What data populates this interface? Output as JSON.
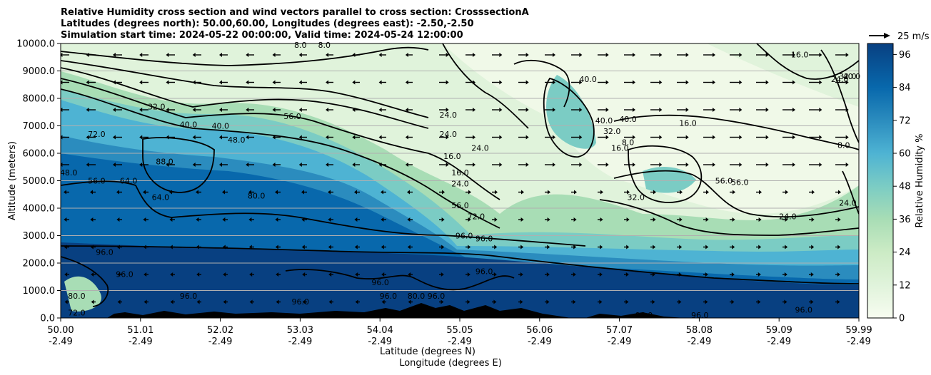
{
  "chart_data": {
    "type": "heatmap",
    "title_lines": [
      "Relative Humidity cross section and wind vectors parallel to cross section: CrosssectionA",
      "Latitudes (degrees north): 50.00,60.00, Longitudes (degrees east): -2.50,-2.50",
      "Simulation start time: 2024-05-22 00:00:00, Valid time: 2024-05-24 12:00:00"
    ],
    "xlabel_lines": [
      "Latitude (degrees N)",
      "Longitude (degrees E)"
    ],
    "ylabel": "Altitude (meters)",
    "colorbar_label": "Relative Humidity %",
    "quiver_key_label": "25 m/s",
    "x_ticks": [
      {
        "lat": "50.00",
        "lon": "-2.49"
      },
      {
        "lat": "51.01",
        "lon": "-2.49"
      },
      {
        "lat": "52.02",
        "lon": "-2.49"
      },
      {
        "lat": "53.03",
        "lon": "-2.49"
      },
      {
        "lat": "54.04",
        "lon": "-2.49"
      },
      {
        "lat": "55.05",
        "lon": "-2.49"
      },
      {
        "lat": "56.06",
        "lon": "-2.49"
      },
      {
        "lat": "57.07",
        "lon": "-2.49"
      },
      {
        "lat": "58.08",
        "lon": "-2.49"
      },
      {
        "lat": "59.09",
        "lon": "-2.49"
      },
      {
        "lat": "59.99",
        "lon": "-2.49"
      }
    ],
    "y_ticks": [
      "0.0",
      "1000.0",
      "2000.0",
      "3000.0",
      "4000.0",
      "5000.0",
      "6000.0",
      "7000.0",
      "8000.0",
      "9000.0",
      "10000.0"
    ],
    "ylim": [
      0,
      10000
    ],
    "colorbar_ticks": [
      "0",
      "12",
      "24",
      "36",
      "48",
      "60",
      "72",
      "84",
      "96"
    ],
    "colorbar_range": [
      0,
      100
    ],
    "colormap": "GnBu",
    "grid": "horizontal",
    "contour_labels": [
      {
        "text": "8.0",
        "lat": 53.0,
        "alt": 9950
      },
      {
        "text": "8.0",
        "lat": 53.3,
        "alt": 9950
      },
      {
        "text": "32.0",
        "lat": 51.2,
        "alt": 7700
      },
      {
        "text": "72.0",
        "lat": 50.45,
        "alt": 6700
      },
      {
        "text": "40.0",
        "lat": 51.6,
        "alt": 7050
      },
      {
        "text": "40.0",
        "lat": 52.0,
        "alt": 7000
      },
      {
        "text": "48.0",
        "lat": 52.2,
        "alt": 6500
      },
      {
        "text": "56.0",
        "lat": 52.9,
        "alt": 7350
      },
      {
        "text": "88.0",
        "lat": 51.3,
        "alt": 5700
      },
      {
        "text": "48.0",
        "lat": 50.1,
        "alt": 5300
      },
      {
        "text": "56.0",
        "lat": 50.45,
        "alt": 5000
      },
      {
        "text": "64.0",
        "lat": 50.85,
        "alt": 5000
      },
      {
        "text": "64.0",
        "lat": 51.25,
        "alt": 4400
      },
      {
        "text": "80.0",
        "lat": 52.45,
        "alt": 4450
      },
      {
        "text": "24.0",
        "lat": 54.85,
        "alt": 7400
      },
      {
        "text": "24.0",
        "lat": 54.85,
        "alt": 6700
      },
      {
        "text": "24.0",
        "lat": 55.25,
        "alt": 6200
      },
      {
        "text": "16.0",
        "lat": 54.9,
        "alt": 5900
      },
      {
        "text": "16.0",
        "lat": 55.0,
        "alt": 5300
      },
      {
        "text": "24.0",
        "lat": 55.0,
        "alt": 4900
      },
      {
        "text": "56.0",
        "lat": 55.0,
        "alt": 4100
      },
      {
        "text": "72.0",
        "lat": 55.2,
        "alt": 3700
      },
      {
        "text": "96.0",
        "lat": 55.05,
        "alt": 3000
      },
      {
        "text": "96.0",
        "lat": 55.3,
        "alt": 2900
      },
      {
        "text": "40.0",
        "lat": 56.6,
        "alt": 8700
      },
      {
        "text": "40.0",
        "lat": 57.1,
        "alt": 7250
      },
      {
        "text": "40.0",
        "lat": 56.8,
        "alt": 7200
      },
      {
        "text": "32.0",
        "lat": 56.9,
        "alt": 6800
      },
      {
        "text": "16.0",
        "lat": 57.85,
        "alt": 7100
      },
      {
        "text": "16.0",
        "lat": 57.0,
        "alt": 6200
      },
      {
        "text": "8.0",
        "lat": 57.1,
        "alt": 6400
      },
      {
        "text": "56.0",
        "lat": 58.3,
        "alt": 5000
      },
      {
        "text": "56.0",
        "lat": 58.5,
        "alt": 4950
      },
      {
        "text": "32.0",
        "lat": 57.2,
        "alt": 4400
      },
      {
        "text": "24.0",
        "lat": 59.1,
        "alt": 3700
      },
      {
        "text": "16.0",
        "lat": 59.25,
        "alt": 9600
      },
      {
        "text": "24.0",
        "lat": 59.75,
        "alt": 8700
      },
      {
        "text": "32.0",
        "lat": 59.85,
        "alt": 8800
      },
      {
        "text": "40.0",
        "lat": 59.9,
        "alt": 8800
      },
      {
        "text": "8.0",
        "lat": 59.8,
        "alt": 6300
      },
      {
        "text": "24.0",
        "lat": 59.85,
        "alt": 4200
      },
      {
        "text": "96.0",
        "lat": 50.55,
        "alt": 2400
      },
      {
        "text": "96.0",
        "lat": 50.8,
        "alt": 1600
      },
      {
        "text": "80.0",
        "lat": 50.2,
        "alt": 800
      },
      {
        "text": "72.0",
        "lat": 50.2,
        "alt": 200
      },
      {
        "text": "96.0",
        "lat": 51.6,
        "alt": 800
      },
      {
        "text": "96.0",
        "lat": 53.0,
        "alt": 600
      },
      {
        "text": "96.0",
        "lat": 54.0,
        "alt": 1300
      },
      {
        "text": "96.0",
        "lat": 54.1,
        "alt": 800
      },
      {
        "text": "80.0",
        "lat": 54.45,
        "alt": 800
      },
      {
        "text": "96.0",
        "lat": 54.7,
        "alt": 800
      },
      {
        "text": "96.0",
        "lat": 55.3,
        "alt": 1700
      },
      {
        "text": "96.0",
        "lat": 57.3,
        "alt": 100
      },
      {
        "text": "96.0",
        "lat": 58.0,
        "alt": 100
      },
      {
        "text": "96.0",
        "lat": 59.3,
        "alt": 300
      }
    ]
  }
}
